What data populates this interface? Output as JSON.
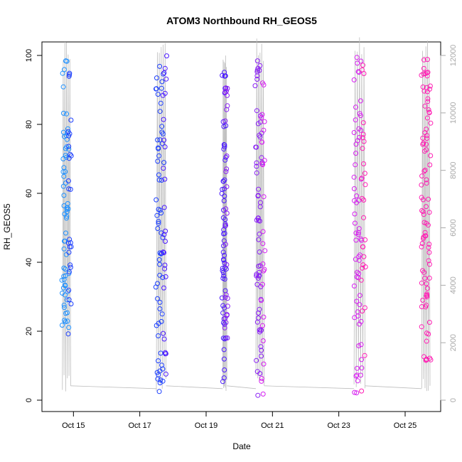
{
  "chart_data": {
    "type": "scatter",
    "title": "ATOM3 Northbound RH_GEOS5",
    "xlabel": "Date",
    "ylabel": "RH_GEOS5",
    "x_ticks": [
      "Oct 15",
      "Oct 17",
      "Oct 19",
      "Oct 21",
      "Oct 23",
      "Oct 25"
    ],
    "y_ticks": [
      0,
      20,
      40,
      60,
      80,
      100
    ],
    "y_right_ticks": [
      0,
      2000,
      4000,
      6000,
      8000,
      10000,
      12000
    ],
    "ylim": [
      0,
      100
    ],
    "y_right_lim": [
      0,
      12000
    ],
    "xlim_days": [
      "2016-10-14",
      "2016-10-26"
    ],
    "grid": false,
    "colors": {
      "right_axis": "#a9a9a9",
      "altitude_line": "#bdbdbd",
      "flight_palette": [
        "#1e90ff",
        "#1c3fff",
        "#4b1aff",
        "#8a1ff5",
        "#d61ff0",
        "#ff1fb4"
      ]
    },
    "series": [
      {
        "date_start": "2016-10-14 16:00",
        "date_end": "2016-10-14 22:00",
        "rh_min": 19,
        "rh_max": 100,
        "alt_min": 0,
        "alt_max": 12500
      },
      {
        "date_start": "2016-10-17 12:00",
        "date_end": "2016-10-17 19:00",
        "rh_min": 2,
        "rh_max": 101,
        "alt_min": 0,
        "alt_max": 12800
      },
      {
        "date_start": "2016-10-19 12:00",
        "date_end": "2016-10-19 15:00",
        "rh_min": 2,
        "rh_max": 98,
        "alt_min": 0,
        "alt_max": 12200
      },
      {
        "date_start": "2016-10-20 12:00",
        "date_end": "2016-10-20 18:00",
        "rh_min": 1,
        "rh_max": 100,
        "alt_min": 0,
        "alt_max": 12600
      },
      {
        "date_start": "2016-10-23 11:00",
        "date_end": "2016-10-23 19:00",
        "rh_min": 1,
        "rh_max": 100,
        "alt_min": 0,
        "alt_max": 12800
      },
      {
        "date_start": "2016-10-25 12:00",
        "date_end": "2016-10-25 18:00",
        "rh_min": 10,
        "rh_max": 100,
        "alt_min": 0,
        "alt_max": 12700
      }
    ]
  }
}
